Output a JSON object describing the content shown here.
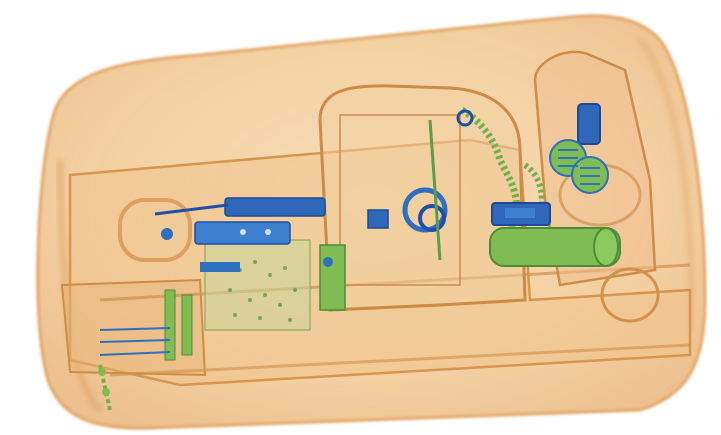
{
  "image": {
    "kind": "x-ray baggage scan",
    "background": "#ffffff",
    "palette": {
      "organic": "#e9a866",
      "organic_light": "#f4d3a6",
      "inorganic": "#7dbf55",
      "metal": "#2f6fc0",
      "dense_metal": "#1f4fa6",
      "outline": "#c98b45"
    }
  }
}
